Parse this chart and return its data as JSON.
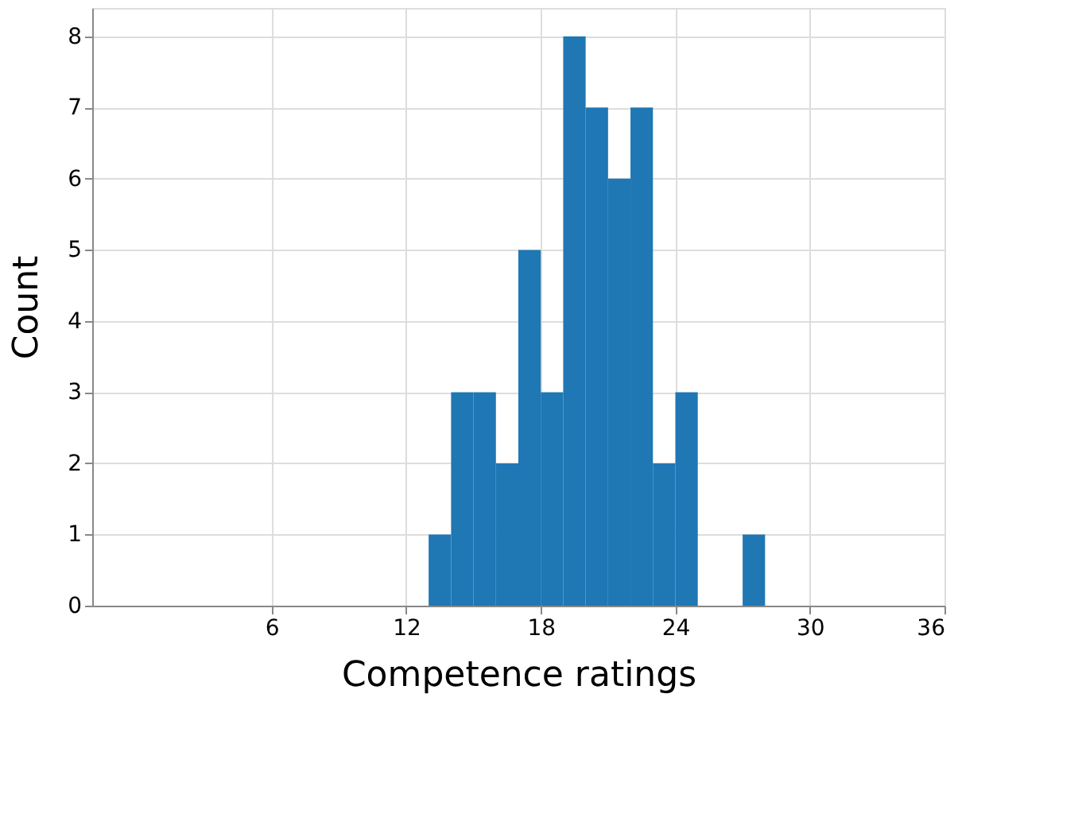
{
  "chart_data": {
    "type": "histogram",
    "xlabel": "Competence ratings",
    "ylabel": "Count",
    "bins": [
      13,
      14,
      15,
      16,
      17,
      18,
      19,
      20,
      21,
      22,
      23,
      24,
      25,
      26,
      27,
      28
    ],
    "values": [
      1,
      3,
      3,
      2,
      5,
      3,
      8,
      7,
      6,
      7,
      2,
      3,
      0,
      0,
      1
    ],
    "color": "#1f77b4",
    "xlim": [
      -2,
      36
    ],
    "xticks": [
      6,
      12,
      18,
      24,
      30,
      36
    ],
    "ylim": [
      0,
      8.4
    ],
    "yticks": [
      0,
      1,
      2,
      3,
      4,
      5,
      6,
      7,
      8
    ],
    "grid": true
  }
}
